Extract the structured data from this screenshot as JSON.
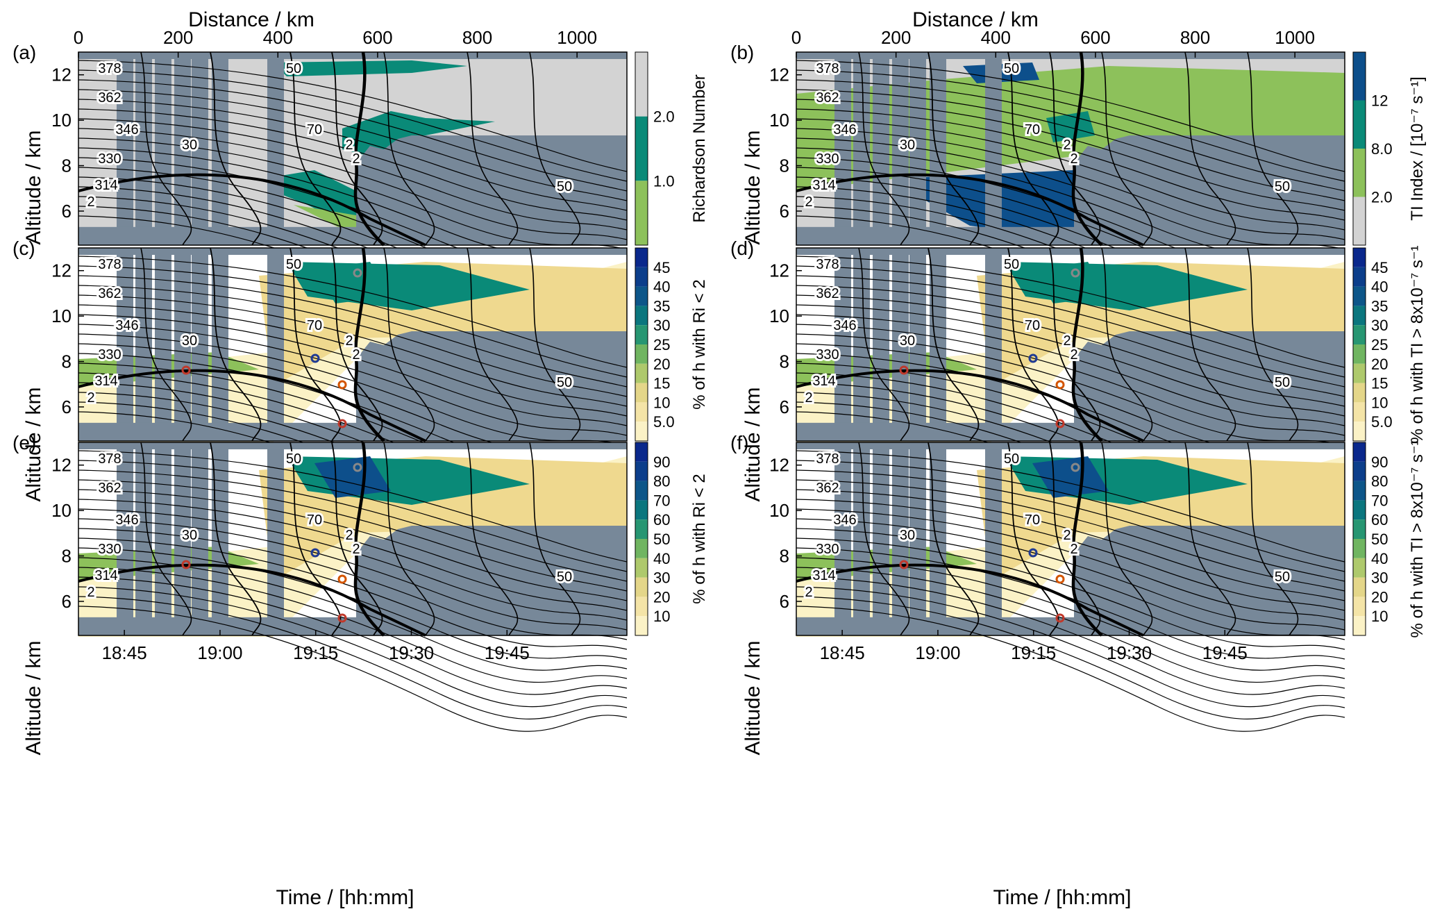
{
  "figure": {
    "top_axis_label": "Distance / km",
    "bottom_axis_label": "Time / [hh:mm]",
    "y_axis_label": "Altitude / km"
  },
  "colors": {
    "masked": "#778899",
    "background": "#d3d3d3",
    "green_light": "#8dc15b",
    "green_teal": "#0a8a78",
    "blue_dark": "#0d4f8b",
    "yellow_pale": "#fbf0c0",
    "yellow": "#efd98f"
  },
  "chart_data": [
    {
      "panel": "(a)",
      "type": "heatmap",
      "colorbar_label": "Richardson Number",
      "colorbar_ticks": [
        "2.0",
        "1.0"
      ],
      "colorbar_levels": [
        0,
        1.0,
        2.0
      ],
      "colorbar_colors": [
        "#8dc15b",
        "#0a8a78",
        "#d3d3d3"
      ],
      "x_top_ticks": [
        "0",
        "200",
        "400",
        "600",
        "800",
        "1000"
      ],
      "x_top_range": [
        0,
        1100
      ],
      "x_bottom_ticks": [],
      "y_ticks": [
        "6",
        "8",
        "10",
        "12"
      ],
      "ylim": [
        4.5,
        13
      ],
      "contour_labels": [
        "378",
        "362",
        "346",
        "330",
        "314",
        "2",
        "30",
        "50",
        "70",
        "2",
        "2",
        "50"
      ]
    },
    {
      "panel": "(b)",
      "type": "heatmap",
      "colorbar_label": "TI Index / [10⁻⁷ s⁻¹]",
      "colorbar_ticks": [
        "12",
        "8.0",
        "2.0"
      ],
      "colorbar_levels": [
        2.0,
        8.0,
        12
      ],
      "colorbar_colors": [
        "#d3d3d3",
        "#8dc15b",
        "#0a8a78",
        "#0d4f8b"
      ],
      "x_top_ticks": [
        "0",
        "200",
        "400",
        "600",
        "800",
        "1000"
      ],
      "x_top_range": [
        0,
        1100
      ],
      "x_bottom_ticks": [],
      "y_ticks": [
        "6",
        "8",
        "10",
        "12"
      ],
      "ylim": [
        4.5,
        13
      ],
      "contour_labels": [
        "378",
        "362",
        "346",
        "330",
        "314",
        "2",
        "30",
        "50",
        "70",
        "2",
        "2",
        "50"
      ]
    },
    {
      "panel": "(c)",
      "type": "heatmap",
      "colorbar_label": "% of h with Ri < 2",
      "colorbar_ticks": [
        "45",
        "40",
        "35",
        "30",
        "25",
        "20",
        "15",
        "10",
        "5.0"
      ],
      "colorbar_levels": [
        5,
        10,
        15,
        20,
        25,
        30,
        35,
        40,
        45
      ],
      "x_top_ticks": [],
      "x_bottom_ticks": [],
      "y_ticks": [
        "6",
        "8",
        "10",
        "12"
      ],
      "ylim": [
        4.5,
        13
      ],
      "contour_labels": [
        "378",
        "362",
        "346",
        "330",
        "314",
        "2",
        "30",
        "50",
        "70",
        "2",
        "2",
        "50"
      ]
    },
    {
      "panel": "(d)",
      "type": "heatmap",
      "colorbar_label": "% of h with TI > 8x10⁻⁷ s⁻¹",
      "colorbar_ticks": [
        "45",
        "40",
        "35",
        "30",
        "25",
        "20",
        "15",
        "10",
        "5.0"
      ],
      "colorbar_levels": [
        5,
        10,
        15,
        20,
        25,
        30,
        35,
        40,
        45
      ],
      "x_top_ticks": [],
      "x_bottom_ticks": [],
      "y_ticks": [
        "6",
        "8",
        "10",
        "12"
      ],
      "ylim": [
        4.5,
        13
      ],
      "contour_labels": [
        "378",
        "362",
        "346",
        "330",
        "314",
        "2",
        "30",
        "50",
        "70",
        "2",
        "2",
        "50"
      ]
    },
    {
      "panel": "(e)",
      "type": "heatmap",
      "colorbar_label": "% of h with Ri < 2",
      "colorbar_ticks": [
        "90",
        "80",
        "70",
        "60",
        "50",
        "40",
        "30",
        "20",
        "10"
      ],
      "colorbar_levels": [
        10,
        20,
        30,
        40,
        50,
        60,
        70,
        80,
        90
      ],
      "x_top_ticks": [],
      "x_bottom_ticks": [
        "18:45",
        "19:00",
        "19:15",
        "19:30",
        "19:45"
      ],
      "y_ticks": [
        "6",
        "8",
        "10",
        "12"
      ],
      "ylim": [
        4.5,
        13
      ],
      "contour_labels": [
        "378",
        "362",
        "346",
        "330",
        "314",
        "2",
        "30",
        "50",
        "70",
        "2",
        "2",
        "50"
      ]
    },
    {
      "panel": "(f)",
      "type": "heatmap",
      "colorbar_label": "% of h with TI > 8x10⁻⁷ s⁻¹",
      "colorbar_ticks": [
        "90",
        "80",
        "70",
        "60",
        "50",
        "40",
        "30",
        "20",
        "10"
      ],
      "colorbar_levels": [
        10,
        20,
        30,
        40,
        50,
        60,
        70,
        80,
        90
      ],
      "x_top_ticks": [],
      "x_bottom_ticks": [
        "18:45",
        "19:00",
        "19:15",
        "19:30",
        "19:45"
      ],
      "y_ticks": [
        "6",
        "8",
        "10",
        "12"
      ],
      "ylim": [
        4.5,
        13
      ],
      "contour_labels": [
        "378",
        "362",
        "346",
        "330",
        "314",
        "2",
        "30",
        "50",
        "70",
        "2",
        "2",
        "50"
      ]
    }
  ]
}
